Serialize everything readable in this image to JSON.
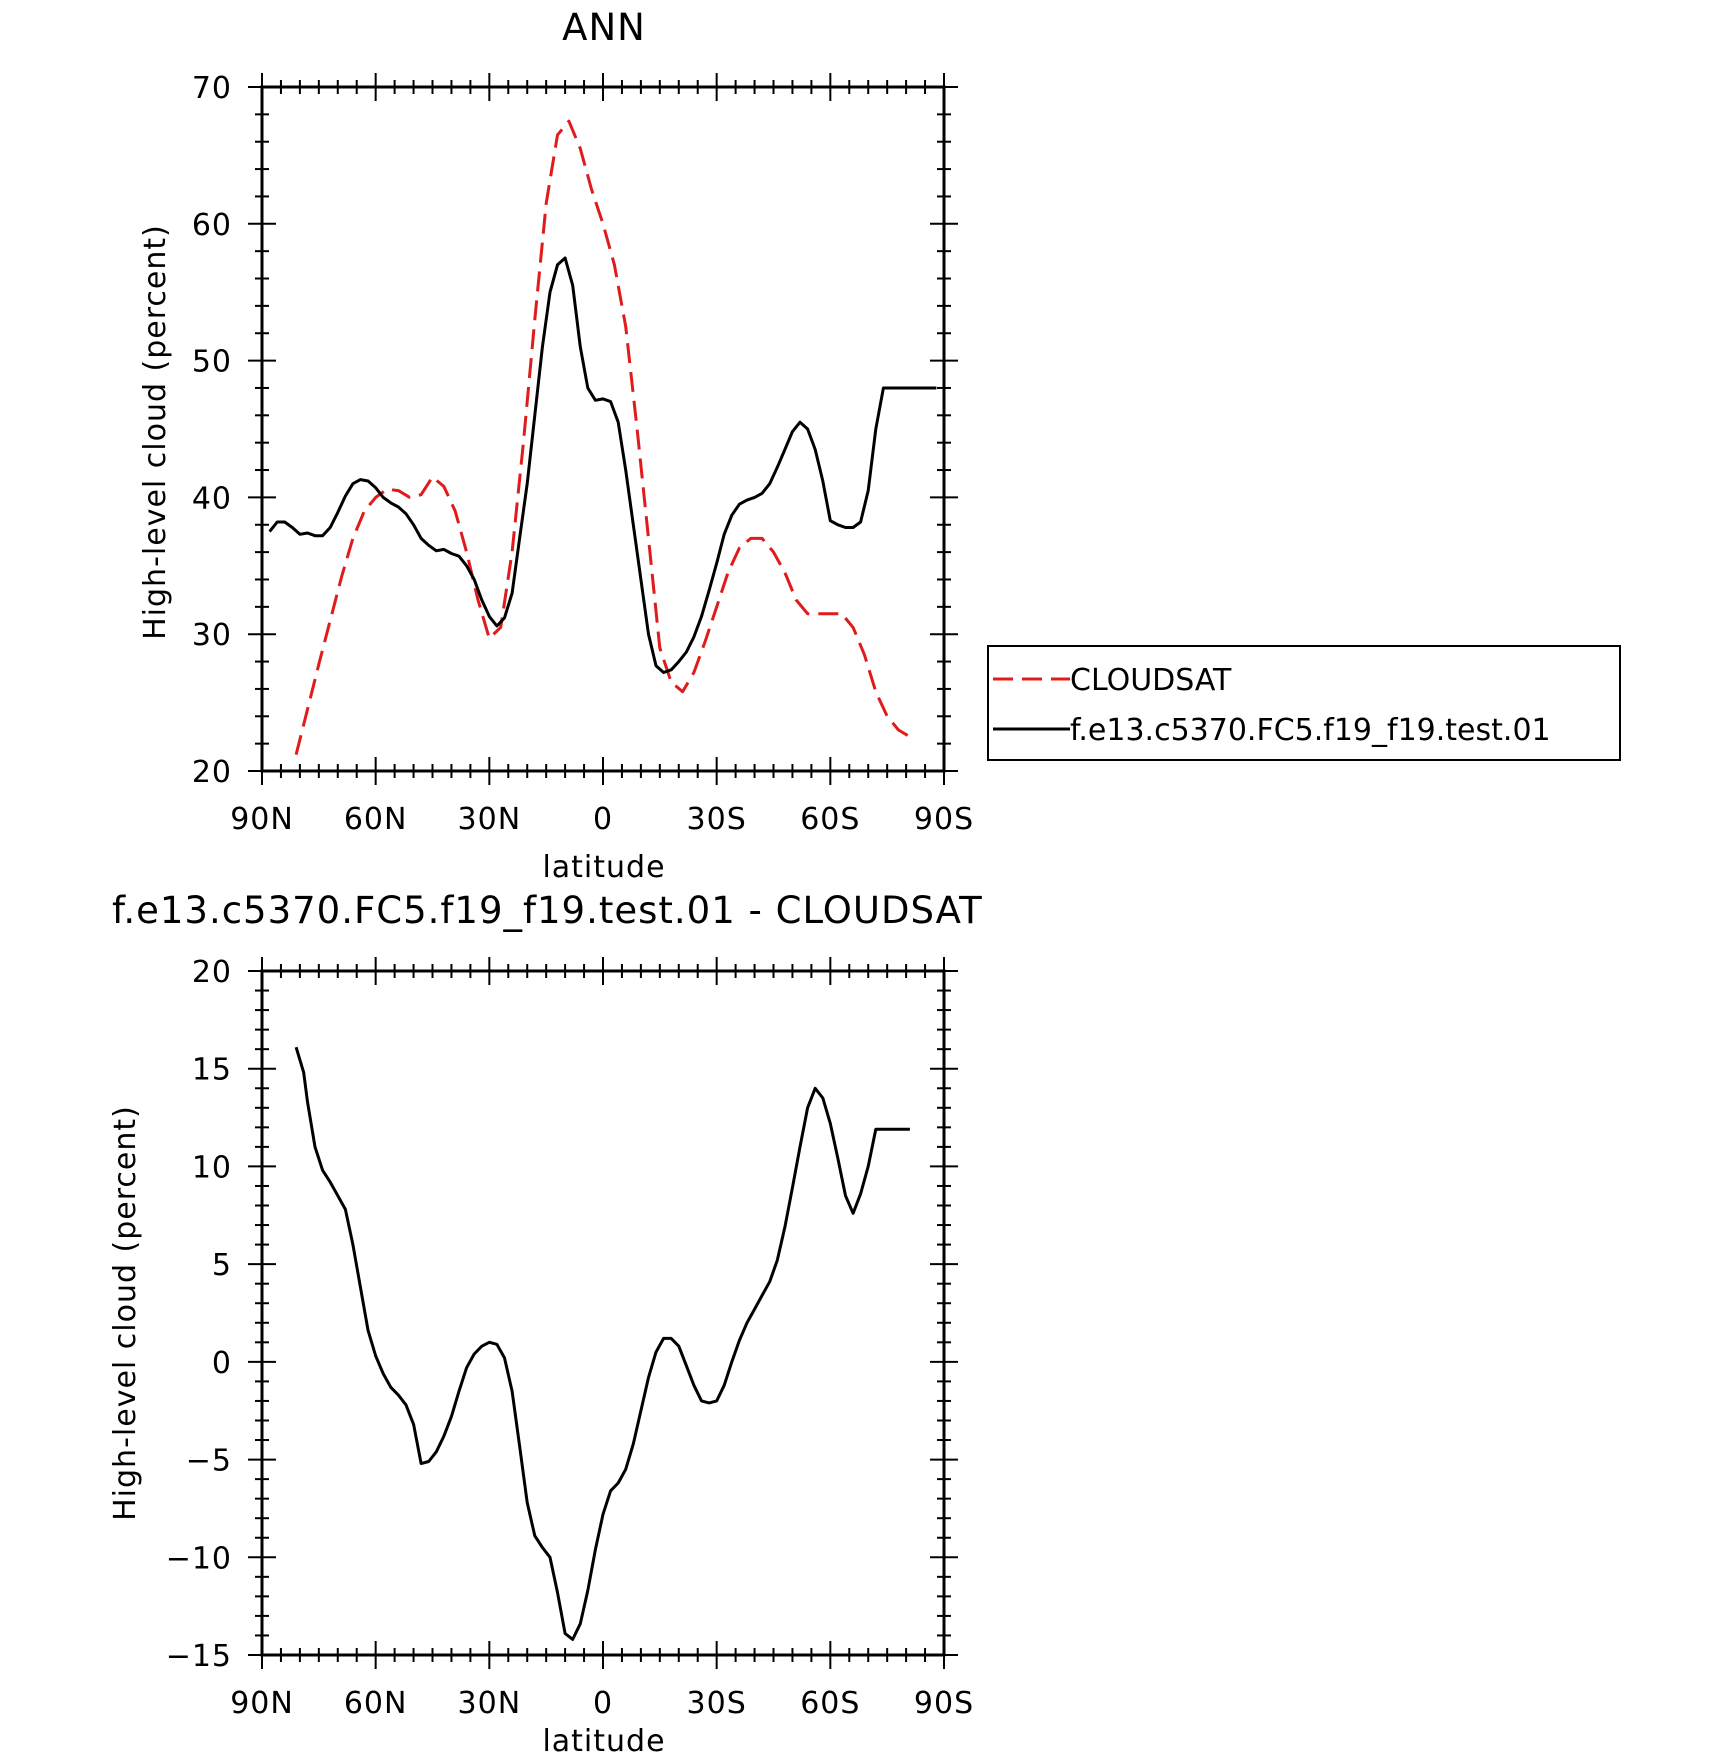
{
  "chart_data": [
    {
      "type": "line",
      "title": "ANN",
      "xlabel": "latitude",
      "ylabel": "High-level cloud (percent)",
      "xticks": [
        "90N",
        "60N",
        "30N",
        "0",
        "30S",
        "60S",
        "90S"
      ],
      "xtick_values": [
        -90,
        -60,
        -30,
        0,
        30,
        60,
        90
      ],
      "ylim": [
        20,
        70
      ],
      "yticks": [
        20,
        30,
        40,
        50,
        60,
        70
      ],
      "xlim": [
        -90,
        90
      ],
      "legend_position": "right",
      "grid": false,
      "series": [
        {
          "name": "CLOUDSAT",
          "color": "#e01b1b",
          "dash": "dashed",
          "x": [
            -81,
            -78,
            -75,
            -72,
            -69,
            -66,
            -63,
            -60,
            -57,
            -54,
            -51,
            -48,
            -45,
            -42,
            -39,
            -36,
            -33,
            -30,
            -27,
            -24,
            -21,
            -18,
            -15,
            -12,
            -9,
            -6,
            -3,
            0,
            3,
            6,
            9,
            12,
            15,
            18,
            21,
            24,
            27,
            30,
            33,
            36,
            39,
            42,
            45,
            48,
            51,
            54,
            57,
            60,
            63,
            66,
            69,
            72,
            75,
            78,
            81
          ],
          "y": [
            21.2,
            24.5,
            27.8,
            31.0,
            34.2,
            37.0,
            39.0,
            40.0,
            40.6,
            40.5,
            40.0,
            40.2,
            41.5,
            40.8,
            39.0,
            36.0,
            32.5,
            29.7,
            30.5,
            36.0,
            44.0,
            53.0,
            61.5,
            66.5,
            67.5,
            65.5,
            62.5,
            60.0,
            57.0,
            52.5,
            45.0,
            37.0,
            29.0,
            26.5,
            25.8,
            27.2,
            29.5,
            32.0,
            34.5,
            36.3,
            37.0,
            37.0,
            36.0,
            34.5,
            32.5,
            31.5,
            31.5,
            31.5,
            31.5,
            30.5,
            28.5,
            25.8,
            24.0,
            23.0,
            22.5
          ]
        },
        {
          "name": "f.e13.c5370.FC5.f19_f19.test.01",
          "color": "#000000",
          "dash": "solid",
          "x": [
            -88,
            -86,
            -84,
            -82,
            -80,
            -78,
            -76,
            -74,
            -72,
            -70,
            -68,
            -66,
            -64,
            -62,
            -60,
            -58,
            -56,
            -54,
            -52,
            -50,
            -48,
            -46,
            -44,
            -42,
            -40,
            -38,
            -36,
            -34,
            -32,
            -30,
            -28,
            -26,
            -24,
            -22,
            -20,
            -18,
            -16,
            -14,
            -12,
            -10,
            -8,
            -6,
            -4,
            -2,
            0,
            2,
            4,
            6,
            8,
            10,
            12,
            14,
            16,
            18,
            20,
            22,
            24,
            26,
            28,
            30,
            32,
            34,
            36,
            38,
            40,
            42,
            44,
            46,
            48,
            50,
            52,
            54,
            56,
            58,
            60,
            62,
            64,
            66,
            68,
            70,
            72,
            74,
            76,
            78,
            80,
            82,
            84,
            86,
            88
          ],
          "y": [
            37.5,
            38.2,
            38.2,
            37.8,
            37.3,
            37.4,
            37.2,
            37.2,
            37.8,
            38.9,
            40.1,
            41.0,
            41.3,
            41.2,
            40.7,
            40.0,
            39.6,
            39.3,
            38.8,
            38.0,
            37.0,
            36.5,
            36.1,
            36.2,
            35.9,
            35.7,
            35.0,
            34.0,
            32.5,
            31.3,
            30.6,
            31.2,
            33.0,
            37.0,
            41.0,
            46.0,
            51.0,
            55.0,
            57.0,
            57.5,
            55.5,
            51.0,
            48.0,
            47.1,
            47.2,
            47.0,
            45.5,
            42.0,
            38.0,
            34.0,
            30.0,
            27.7,
            27.2,
            27.4,
            28.0,
            28.7,
            29.8,
            31.3,
            33.2,
            35.2,
            37.3,
            38.7,
            39.5,
            39.8,
            40.0,
            40.3,
            41.0,
            42.2,
            43.5,
            44.8,
            45.5,
            45.0,
            43.5,
            41.2,
            38.3,
            38.0,
            37.8,
            37.8,
            38.2,
            40.5,
            45.0,
            48.0,
            48.0,
            48.0,
            48.0,
            48.0,
            48.0,
            48.0,
            48.0
          ]
        }
      ]
    },
    {
      "type": "line",
      "title": "f.e13.c5370.FC5.f19_f19.test.01 - CLOUDSAT",
      "xlabel": "latitude",
      "ylabel": "High-level cloud (percent)",
      "xticks": [
        "90N",
        "60N",
        "30N",
        "0",
        "30S",
        "60S",
        "90S"
      ],
      "xtick_values": [
        -90,
        -60,
        -30,
        0,
        30,
        60,
        90
      ],
      "ylim": [
        -15,
        20
      ],
      "yticks": [
        -15,
        -10,
        -5,
        0,
        5,
        10,
        15,
        20
      ],
      "ytick_labels": [
        "−15",
        "−10",
        "−5",
        "0",
        "5",
        "10",
        "15",
        "20"
      ],
      "xlim": [
        -90,
        90
      ],
      "grid": false,
      "series": [
        {
          "color": "#000000",
          "dash": "solid",
          "x": [
            -81,
            -79,
            -78,
            -76,
            -74,
            -72,
            -70,
            -68,
            -66,
            -64,
            -62,
            -60,
            -58,
            -56,
            -54,
            -52,
            -50,
            -48,
            -46,
            -44,
            -42,
            -40,
            -38,
            -36,
            -34,
            -32,
            -30,
            -28,
            -26,
            -24,
            -22,
            -20,
            -18,
            -16,
            -14,
            -12,
            -10,
            -8,
            -6,
            -4,
            -2,
            0,
            2,
            4,
            6,
            8,
            10,
            12,
            14,
            16,
            18,
            20,
            22,
            24,
            26,
            28,
            30,
            32,
            34,
            36,
            38,
            40,
            42,
            44,
            46,
            48,
            50,
            52,
            54,
            56,
            58,
            60,
            62,
            64,
            66,
            68,
            70,
            72,
            74,
            76,
            78,
            80,
            81
          ],
          "y": [
            16.1,
            14.8,
            13.3,
            11.0,
            9.8,
            9.2,
            8.5,
            7.8,
            6.0,
            3.8,
            1.6,
            0.3,
            -0.6,
            -1.3,
            -1.7,
            -2.2,
            -3.2,
            -5.2,
            -5.1,
            -4.6,
            -3.8,
            -2.8,
            -1.5,
            -0.3,
            0.4,
            0.8,
            1.0,
            0.9,
            0.2,
            -1.5,
            -4.3,
            -7.2,
            -8.9,
            -9.5,
            -10.0,
            -11.8,
            -13.9,
            -14.2,
            -13.4,
            -11.7,
            -9.6,
            -7.8,
            -6.6,
            -6.2,
            -5.5,
            -4.2,
            -2.5,
            -0.8,
            0.5,
            1.2,
            1.2,
            0.8,
            -0.2,
            -1.2,
            -2.0,
            -2.1,
            -2.0,
            -1.2,
            0.0,
            1.1,
            2.0,
            2.7,
            3.4,
            4.1,
            5.2,
            6.9,
            8.9,
            11.0,
            13.0,
            14.0,
            13.5,
            12.2,
            10.4,
            8.5,
            7.6,
            8.6,
            10.0,
            11.9,
            11.9,
            11.9,
            11.9,
            11.9,
            11.9
          ]
        }
      ]
    }
  ]
}
